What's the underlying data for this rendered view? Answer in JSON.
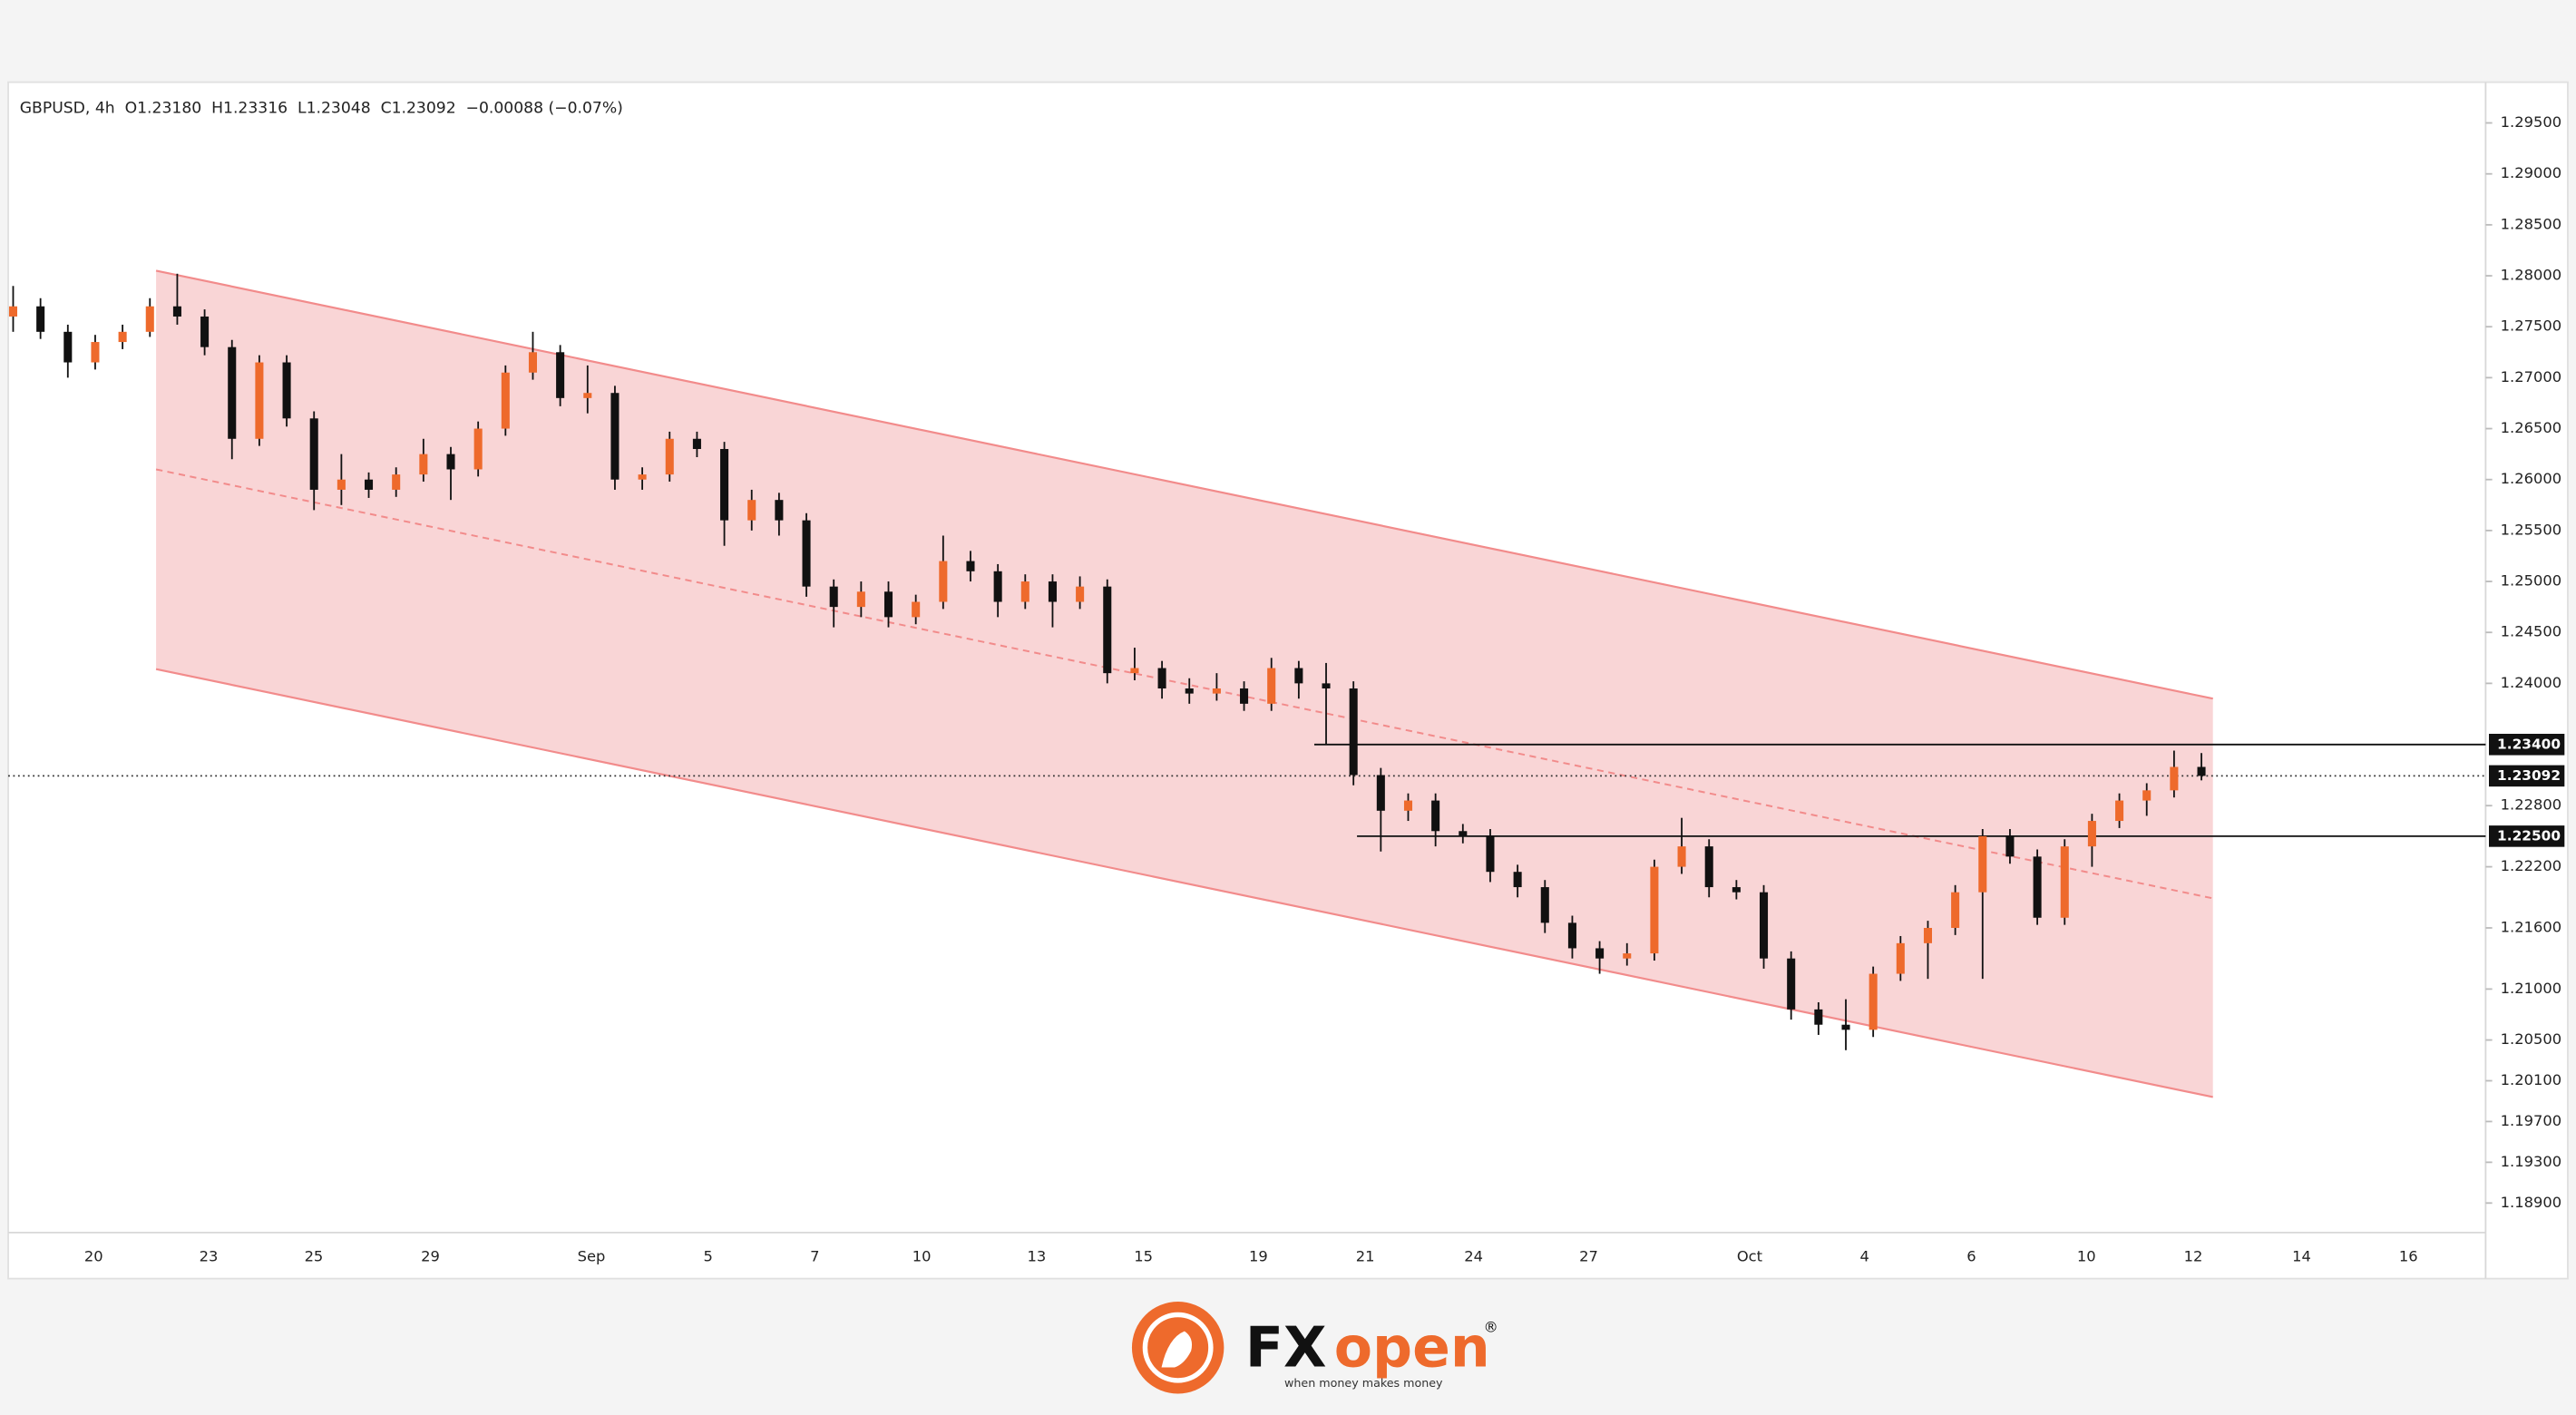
{
  "chart_data": {
    "type": "candlestick",
    "header": "GBPUSD, 4h  O1.23180  H1.23316  L1.23048  C1.23092  −0.00088 (−0.07%)",
    "x_labels": [
      "20",
      "23",
      "25",
      "29",
      "Sep",
      "5",
      "7",
      "10",
      "13",
      "15",
      "19",
      "21",
      "24",
      "27",
      "Oct",
      "4",
      "6",
      "10",
      "12",
      "14",
      "16"
    ],
    "up_color": "#ee6a2c",
    "down_color": "#111111",
    "channel_color": "#f28b8b",
    "ylim": [
      1.1861,
      1.299
    ],
    "yticks": [
      {
        "value": 1.295,
        "label": "1.29500"
      },
      {
        "value": 1.29,
        "label": "1.29000"
      },
      {
        "value": 1.285,
        "label": "1.28500"
      },
      {
        "value": 1.28,
        "label": "1.28000"
      },
      {
        "value": 1.275,
        "label": "1.27500"
      },
      {
        "value": 1.27,
        "label": "1.27000"
      },
      {
        "value": 1.265,
        "label": "1.26500"
      },
      {
        "value": 1.26,
        "label": "1.26000"
      },
      {
        "value": 1.255,
        "label": "1.25500"
      },
      {
        "value": 1.25,
        "label": "1.25000"
      },
      {
        "value": 1.245,
        "label": "1.24500"
      },
      {
        "value": 1.24,
        "label": "1.24000"
      },
      {
        "value": 1.228,
        "label": "1.22800"
      },
      {
        "value": 1.222,
        "label": "1.22200"
      },
      {
        "value": 1.216,
        "label": "1.21600"
      },
      {
        "value": 1.21,
        "label": "1.21000"
      },
      {
        "value": 1.205,
        "label": "1.20500"
      },
      {
        "value": 1.201,
        "label": "1.20100"
      },
      {
        "value": 1.197,
        "label": "1.19700"
      },
      {
        "value": 1.193,
        "label": "1.19300"
      },
      {
        "value": 1.189,
        "label": "1.18900"
      }
    ],
    "levels": [
      {
        "value": 1.234,
        "label": "1.23400"
      },
      {
        "value": 1.225,
        "label": "1.22500"
      }
    ],
    "last_price": {
      "value": 1.23092,
      "label": "1.23092"
    },
    "channel": {
      "upper": [
        1.2805,
        1.2385
      ],
      "middle": [
        1.261,
        1.2189
      ],
      "lower": [
        1.2414,
        1.1994
      ]
    },
    "ohlc": [
      [
        1.276,
        1.279,
        1.2745,
        1.277
      ],
      [
        1.277,
        1.2778,
        1.2738,
        1.2745
      ],
      [
        1.2745,
        1.2752,
        1.27,
        1.2715
      ],
      [
        1.2715,
        1.2742,
        1.2708,
        1.2735
      ],
      [
        1.2735,
        1.2752,
        1.2728,
        1.2745
      ],
      [
        1.2745,
        1.2778,
        1.274,
        1.277
      ],
      [
        1.277,
        1.2802,
        1.2752,
        1.276
      ],
      [
        1.276,
        1.2767,
        1.2722,
        1.273
      ],
      [
        1.273,
        1.2737,
        1.262,
        1.264
      ],
      [
        1.264,
        1.2722,
        1.2633,
        1.2715
      ],
      [
        1.2715,
        1.2722,
        1.2652,
        1.266
      ],
      [
        1.266,
        1.2667,
        1.257,
        1.259
      ],
      [
        1.259,
        1.2625,
        1.2575,
        1.26
      ],
      [
        1.26,
        1.2607,
        1.2582,
        1.259
      ],
      [
        1.259,
        1.2612,
        1.2583,
        1.2605
      ],
      [
        1.2605,
        1.264,
        1.2598,
        1.2625
      ],
      [
        1.2625,
        1.2632,
        1.258,
        1.261
      ],
      [
        1.261,
        1.2657,
        1.2603,
        1.265
      ],
      [
        1.265,
        1.2712,
        1.2643,
        1.2705
      ],
      [
        1.2705,
        1.2745,
        1.2698,
        1.2725
      ],
      [
        1.2725,
        1.2732,
        1.2672,
        1.268
      ],
      [
        1.268,
        1.2712,
        1.2665,
        1.2685
      ],
      [
        1.2685,
        1.2692,
        1.259,
        1.26
      ],
      [
        1.26,
        1.2612,
        1.259,
        1.2605
      ],
      [
        1.2605,
        1.2647,
        1.2598,
        1.264
      ],
      [
        1.264,
        1.2647,
        1.2622,
        1.263
      ],
      [
        1.263,
        1.2637,
        1.2535,
        1.256
      ],
      [
        1.256,
        1.259,
        1.255,
        1.258
      ],
      [
        1.258,
        1.2587,
        1.2545,
        1.256
      ],
      [
        1.256,
        1.2567,
        1.2485,
        1.2495
      ],
      [
        1.2495,
        1.2502,
        1.2455,
        1.2475
      ],
      [
        1.2475,
        1.25,
        1.2465,
        1.249
      ],
      [
        1.249,
        1.25,
        1.2455,
        1.2465
      ],
      [
        1.2465,
        1.2487,
        1.2458,
        1.248
      ],
      [
        1.248,
        1.2545,
        1.2473,
        1.252
      ],
      [
        1.252,
        1.253,
        1.25,
        1.251
      ],
      [
        1.251,
        1.2517,
        1.2465,
        1.248
      ],
      [
        1.248,
        1.2507,
        1.2473,
        1.25
      ],
      [
        1.25,
        1.2507,
        1.2455,
        1.248
      ],
      [
        1.248,
        1.2505,
        1.2473,
        1.2495
      ],
      [
        1.2495,
        1.2502,
        1.24,
        1.241
      ],
      [
        1.241,
        1.2435,
        1.2403,
        1.2415
      ],
      [
        1.2415,
        1.2422,
        1.2385,
        1.2395
      ],
      [
        1.2395,
        1.2405,
        1.238,
        1.239
      ],
      [
        1.239,
        1.241,
        1.2383,
        1.2395
      ],
      [
        1.2395,
        1.2402,
        1.2373,
        1.238
      ],
      [
        1.238,
        1.2425,
        1.2373,
        1.2415
      ],
      [
        1.2415,
        1.2422,
        1.2385,
        1.24
      ],
      [
        1.24,
        1.242,
        1.234,
        1.2395
      ],
      [
        1.2395,
        1.2402,
        1.23,
        1.231
      ],
      [
        1.231,
        1.2317,
        1.2235,
        1.2275
      ],
      [
        1.2275,
        1.2292,
        1.2265,
        1.2285
      ],
      [
        1.2285,
        1.2292,
        1.224,
        1.2255
      ],
      [
        1.2255,
        1.2262,
        1.2243,
        1.225
      ],
      [
        1.225,
        1.2257,
        1.2205,
        1.2215
      ],
      [
        1.2215,
        1.2222,
        1.219,
        1.22
      ],
      [
        1.22,
        1.2207,
        1.2155,
        1.2165
      ],
      [
        1.2165,
        1.2172,
        1.213,
        1.214
      ],
      [
        1.214,
        1.2147,
        1.2115,
        1.213
      ],
      [
        1.213,
        1.2145,
        1.2123,
        1.2135
      ],
      [
        1.2135,
        1.2227,
        1.2128,
        1.222
      ],
      [
        1.222,
        1.2268,
        1.2213,
        1.224
      ],
      [
        1.224,
        1.2247,
        1.219,
        1.22
      ],
      [
        1.22,
        1.2207,
        1.2188,
        1.2195
      ],
      [
        1.2195,
        1.2202,
        1.212,
        1.213
      ],
      [
        1.213,
        1.2137,
        1.207,
        1.208
      ],
      [
        1.208,
        1.2087,
        1.2055,
        1.2065
      ],
      [
        1.2065,
        1.209,
        1.204,
        1.206
      ],
      [
        1.206,
        1.2122,
        1.2053,
        1.2115
      ],
      [
        1.2115,
        1.2152,
        1.2108,
        1.2145
      ],
      [
        1.2145,
        1.2167,
        1.211,
        1.216
      ],
      [
        1.216,
        1.2202,
        1.2153,
        1.2195
      ],
      [
        1.2195,
        1.2257,
        1.211,
        1.225
      ],
      [
        1.225,
        1.2257,
        1.2223,
        1.223
      ],
      [
        1.223,
        1.2237,
        1.2163,
        1.217
      ],
      [
        1.217,
        1.2247,
        1.2163,
        1.224
      ],
      [
        1.224,
        1.2272,
        1.222,
        1.2265
      ],
      [
        1.2265,
        1.2292,
        1.2258,
        1.2285
      ],
      [
        1.2285,
        1.2302,
        1.227,
        1.2295
      ],
      [
        1.2295,
        1.2334,
        1.2288,
        1.2318
      ],
      [
        1.2318,
        1.23316,
        1.23048,
        1.23092
      ]
    ]
  },
  "logo": {
    "brand_a": "FX",
    "brand_b": "open",
    "mark": "®",
    "tagline": "when money makes money"
  }
}
